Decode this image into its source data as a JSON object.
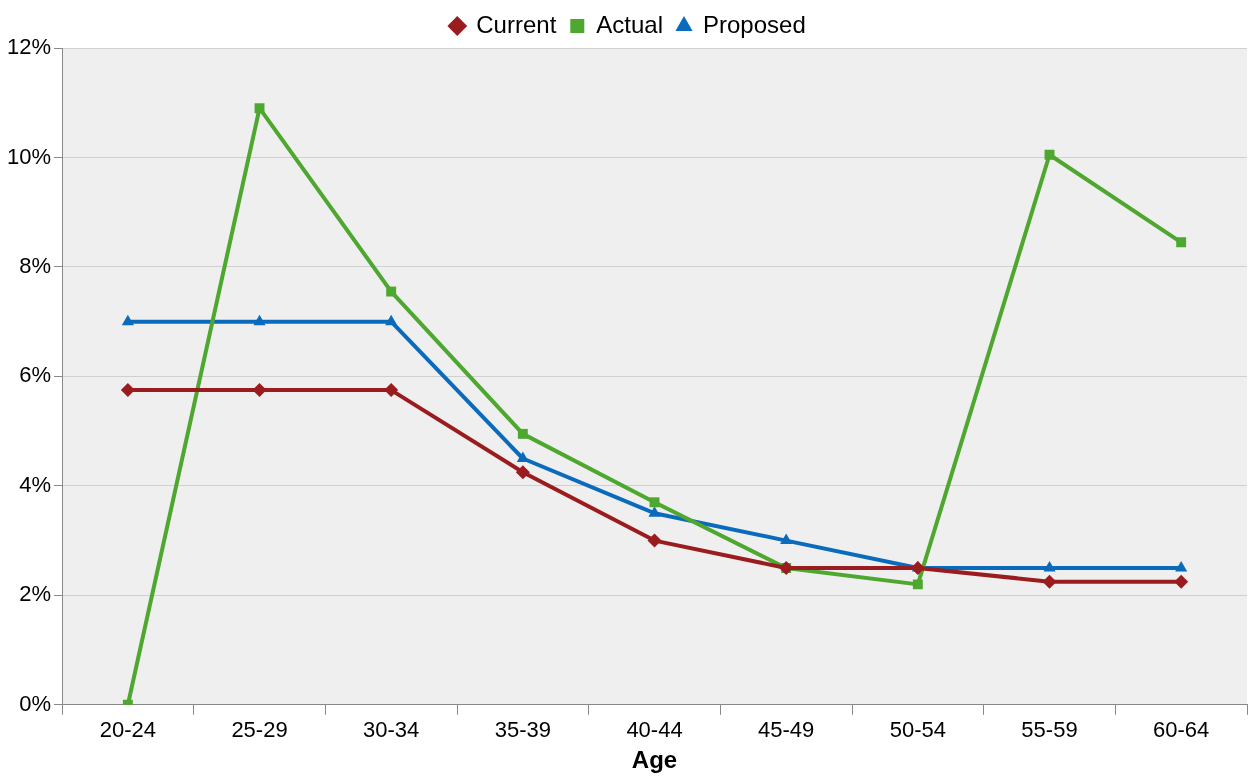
{
  "chart_data": {
    "type": "line",
    "xlabel": "Age",
    "categories": [
      "20-24",
      "25-29",
      "30-34",
      "35-39",
      "40-44",
      "45-49",
      "50-54",
      "55-59",
      "60-64"
    ],
    "series": [
      {
        "name": "Current",
        "color": "#9b1c1f",
        "marker": "diamond",
        "values": [
          5.75,
          5.75,
          5.75,
          4.25,
          3.0,
          2.5,
          2.5,
          2.25,
          2.25
        ]
      },
      {
        "name": "Actual",
        "color": "#4ea72e",
        "marker": "square",
        "values": [
          0,
          10.9,
          7.55,
          4.95,
          3.7,
          2.5,
          2.2,
          10.05,
          8.45
        ]
      },
      {
        "name": "Proposed",
        "color": "#0a6bbd",
        "marker": "triangle",
        "values": [
          7,
          7,
          7,
          4.5,
          3.5,
          3.0,
          2.5,
          2.5,
          2.5
        ]
      }
    ],
    "ylim": [
      0,
      12
    ],
    "yticks": [
      {
        "value": 0,
        "label": "0%"
      },
      {
        "value": 2,
        "label": "2%"
      },
      {
        "value": 4,
        "label": "4%"
      },
      {
        "value": 6,
        "label": "6%"
      },
      {
        "value": 8,
        "label": "8%"
      },
      {
        "value": 10,
        "label": "10%"
      },
      {
        "value": 12,
        "label": "12%"
      }
    ],
    "grid": "y",
    "legend": "top",
    "line_style": "solid"
  }
}
